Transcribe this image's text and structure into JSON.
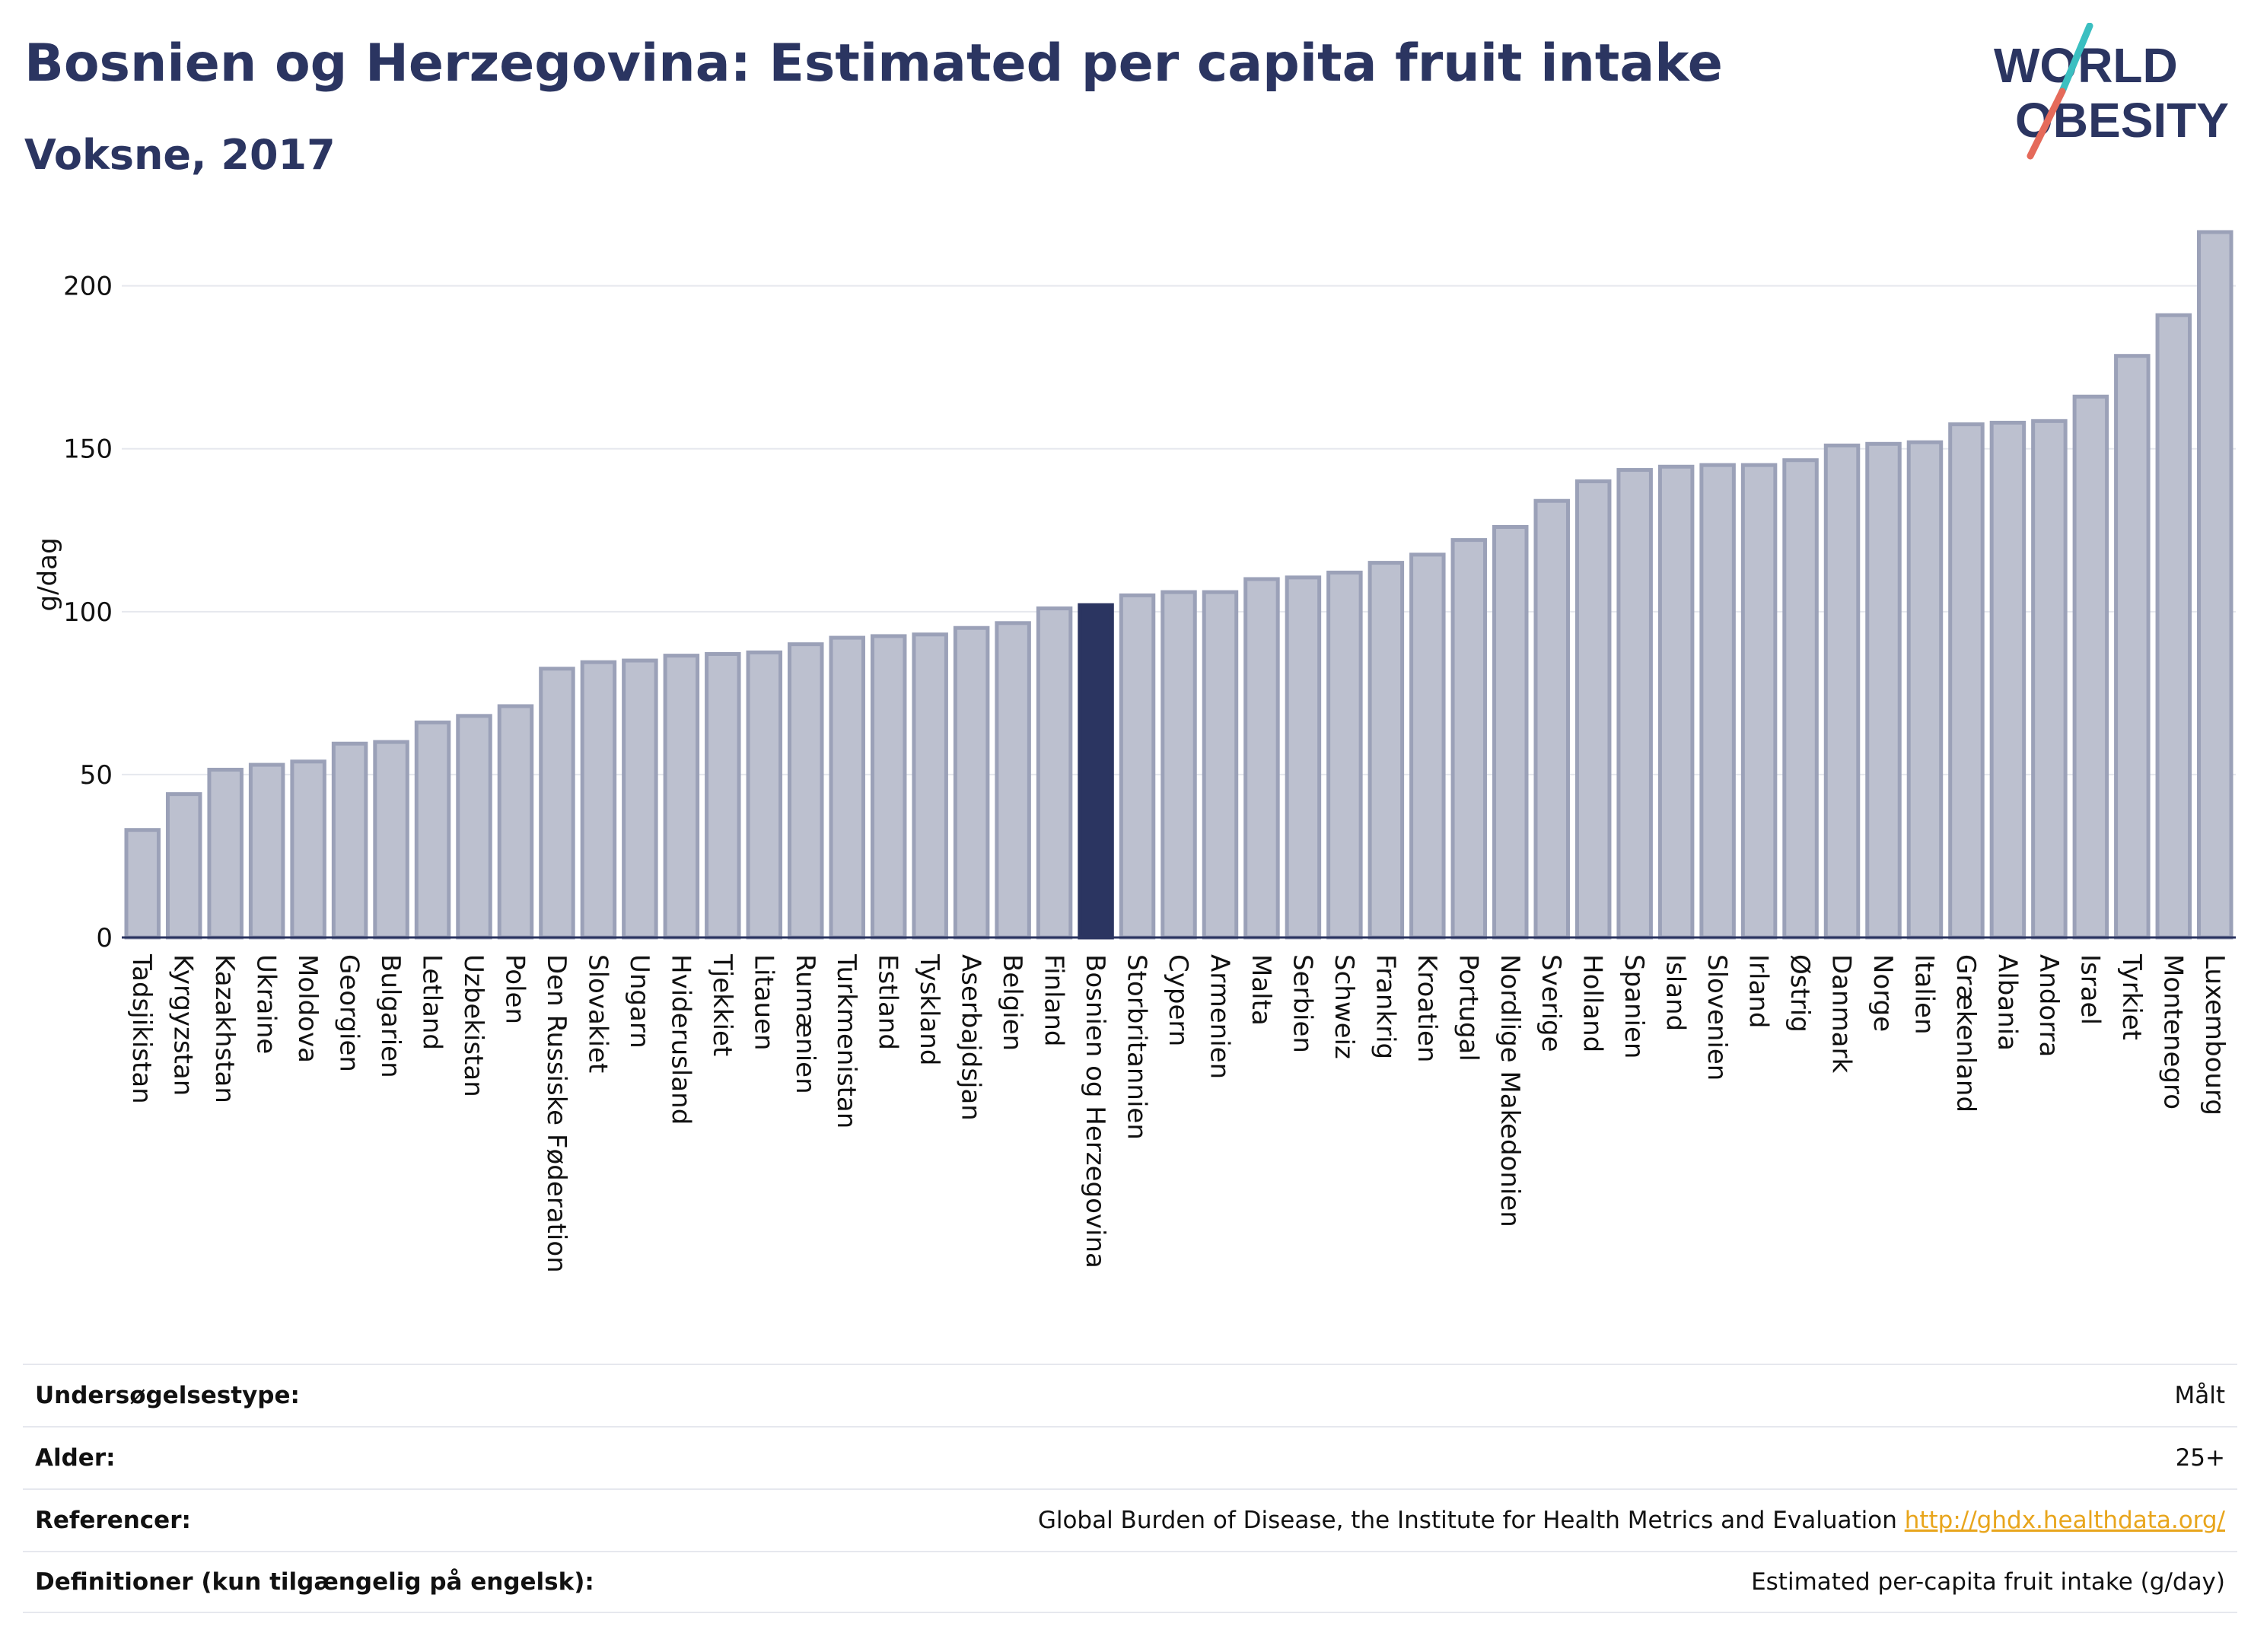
{
  "header": {
    "title": "Bosnien og Herzegovina: Estimated per capita fruit intake",
    "subtitle": "Voksne, 2017"
  },
  "logo": {
    "line1": "WORLD",
    "line2": "OBESITY"
  },
  "colors": {
    "bar": "#bcc0cf",
    "bar_stroke": "#9ba1b8",
    "highlight": "#2b3561",
    "text": "#2b3561",
    "grid": "#e6e8ee",
    "link": "#e8a51c",
    "logo_teal": "#3bbfc1",
    "logo_coral": "#e56a5a"
  },
  "chart_data": {
    "type": "bar",
    "ylabel": "g/dag",
    "ylim": [
      0,
      220
    ],
    "yticks": [
      0,
      50,
      100,
      150,
      200
    ],
    "grid": true,
    "highlight": "Bosnien og Herzegovina",
    "categories": [
      "Tadsjikistan",
      "Kyrgyzstan",
      "Kazakhstan",
      "Ukraine",
      "Moldova",
      "Georgien",
      "Bulgarien",
      "Letland",
      "Uzbekistan",
      "Polen",
      "Den Russiske Føderation",
      "Slovakiet",
      "Ungarn",
      "Hviderusland",
      "Tjekkiet",
      "Litauen",
      "Rumænien",
      "Turkmenistan",
      "Estland",
      "Tyskland",
      "Aserbajdsjan",
      "Belgien",
      "Finland",
      "Bosnien og Herzegovina",
      "Storbritannien",
      "Cypern",
      "Armenien",
      "Malta",
      "Serbien",
      "Schweiz",
      "Frankrig",
      "Kroatien",
      "Portugal",
      "Nordlige Makedonien",
      "Sverige",
      "Holland",
      "Spanien",
      "Island",
      "Slovenien",
      "Irland",
      "Østrig",
      "Danmark",
      "Norge",
      "Italien",
      "Grækenland",
      "Albania",
      "Andorra",
      "Israel",
      "Tyrkiet",
      "Montenegro",
      "Luxembourg"
    ],
    "values": [
      33,
      44,
      51.5,
      53,
      54,
      59.5,
      60,
      66,
      68,
      71,
      82.5,
      84.5,
      85,
      86.5,
      87,
      87.5,
      90,
      92,
      92.5,
      93,
      95,
      96.5,
      101,
      102,
      105,
      106,
      106,
      110,
      110.5,
      112,
      115,
      117.5,
      122,
      126,
      134,
      140,
      143.5,
      144.5,
      145,
      145,
      146.5,
      151,
      151.5,
      152,
      157.5,
      158,
      158.5,
      166,
      178.5,
      191,
      216.5
    ]
  },
  "meta": {
    "rows": [
      {
        "label": "Undersøgelsestype:",
        "value": "Målt"
      },
      {
        "label": "Alder:",
        "value": "25+"
      },
      {
        "label": "Referencer:",
        "value": "Global Burden of Disease, the Institute for Health Metrics and Evaluation",
        "link": "http://ghdx.healthdata.org/"
      },
      {
        "label": "Definitioner (kun tilgængelig på engelsk):",
        "value": "Estimated per-capita fruit intake (g/day)"
      }
    ]
  }
}
